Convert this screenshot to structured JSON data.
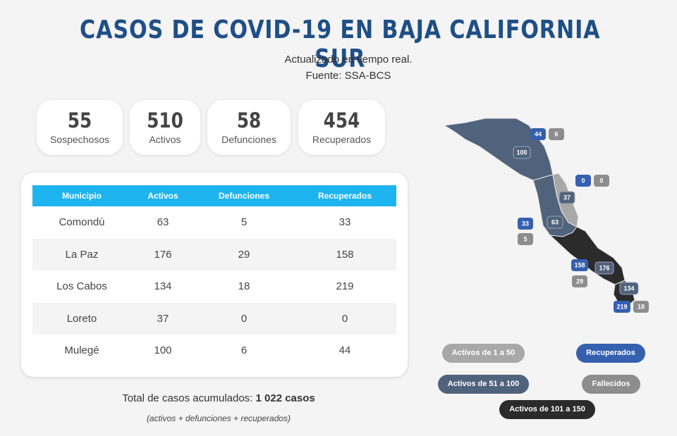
{
  "header": {
    "title": "CASOS DE COVID-19 EN BAJA CALIFORNIA SUR",
    "subtitle1": "Actualizado en tiempo real.",
    "subtitle2": "Fuente: SSA-BCS"
  },
  "stats": [
    {
      "value": "55",
      "label": "Sospechosos"
    },
    {
      "value": "510",
      "label": "Activos"
    },
    {
      "value": "58",
      "label": "Defunciones"
    },
    {
      "value": "454",
      "label": "Recuperados"
    }
  ],
  "table": {
    "headers": [
      "Municipio",
      "Activos",
      "Defunciones",
      "Recuperados"
    ],
    "rows": [
      [
        "Comondú",
        "63",
        "5",
        "33"
      ],
      [
        "La Paz",
        "176",
        "29",
        "158"
      ],
      [
        "Los Cabos",
        "134",
        "18",
        "219"
      ],
      [
        "Loreto",
        "37",
        "0",
        "0"
      ],
      [
        "Mulegé",
        "100",
        "6",
        "44"
      ]
    ]
  },
  "total": {
    "prefix": "Total de casos acumulados: ",
    "value": "1 022 casos",
    "note": "(activos + defunciones + recuperados)"
  },
  "map": {
    "regions": [
      {
        "name": "Mulegé",
        "active": "100",
        "recovered": "44",
        "deaths": "6",
        "color": "#51627c"
      },
      {
        "name": "Loreto",
        "active": "37",
        "recovered": "0",
        "deaths": "0",
        "color": "#a8a8a8"
      },
      {
        "name": "Comondú",
        "active": "63",
        "recovered": "33",
        "deaths": "5",
        "color": "#51627c"
      },
      {
        "name": "La Paz",
        "active": "176",
        "recovered": "158",
        "deaths": "29",
        "color": "#2b2b2b"
      },
      {
        "name": "Los Cabos",
        "active": "134",
        "recovered": "219",
        "deaths": "18",
        "color": "#2b2b2b"
      }
    ]
  },
  "legend": {
    "range1": "Activos de 1 a 50",
    "range2": "Activos de 51 a 100",
    "range3": "Activos de 101 a 150",
    "recovered": "Recuperados",
    "deaths": "Fallecidos"
  },
  "colors": {
    "title": "#1f4f86",
    "table_header": "#1eb4f0",
    "recovered_badge": "#3560b0",
    "deaths_badge": "#8d8d8d",
    "active_badge": "#51627c"
  }
}
